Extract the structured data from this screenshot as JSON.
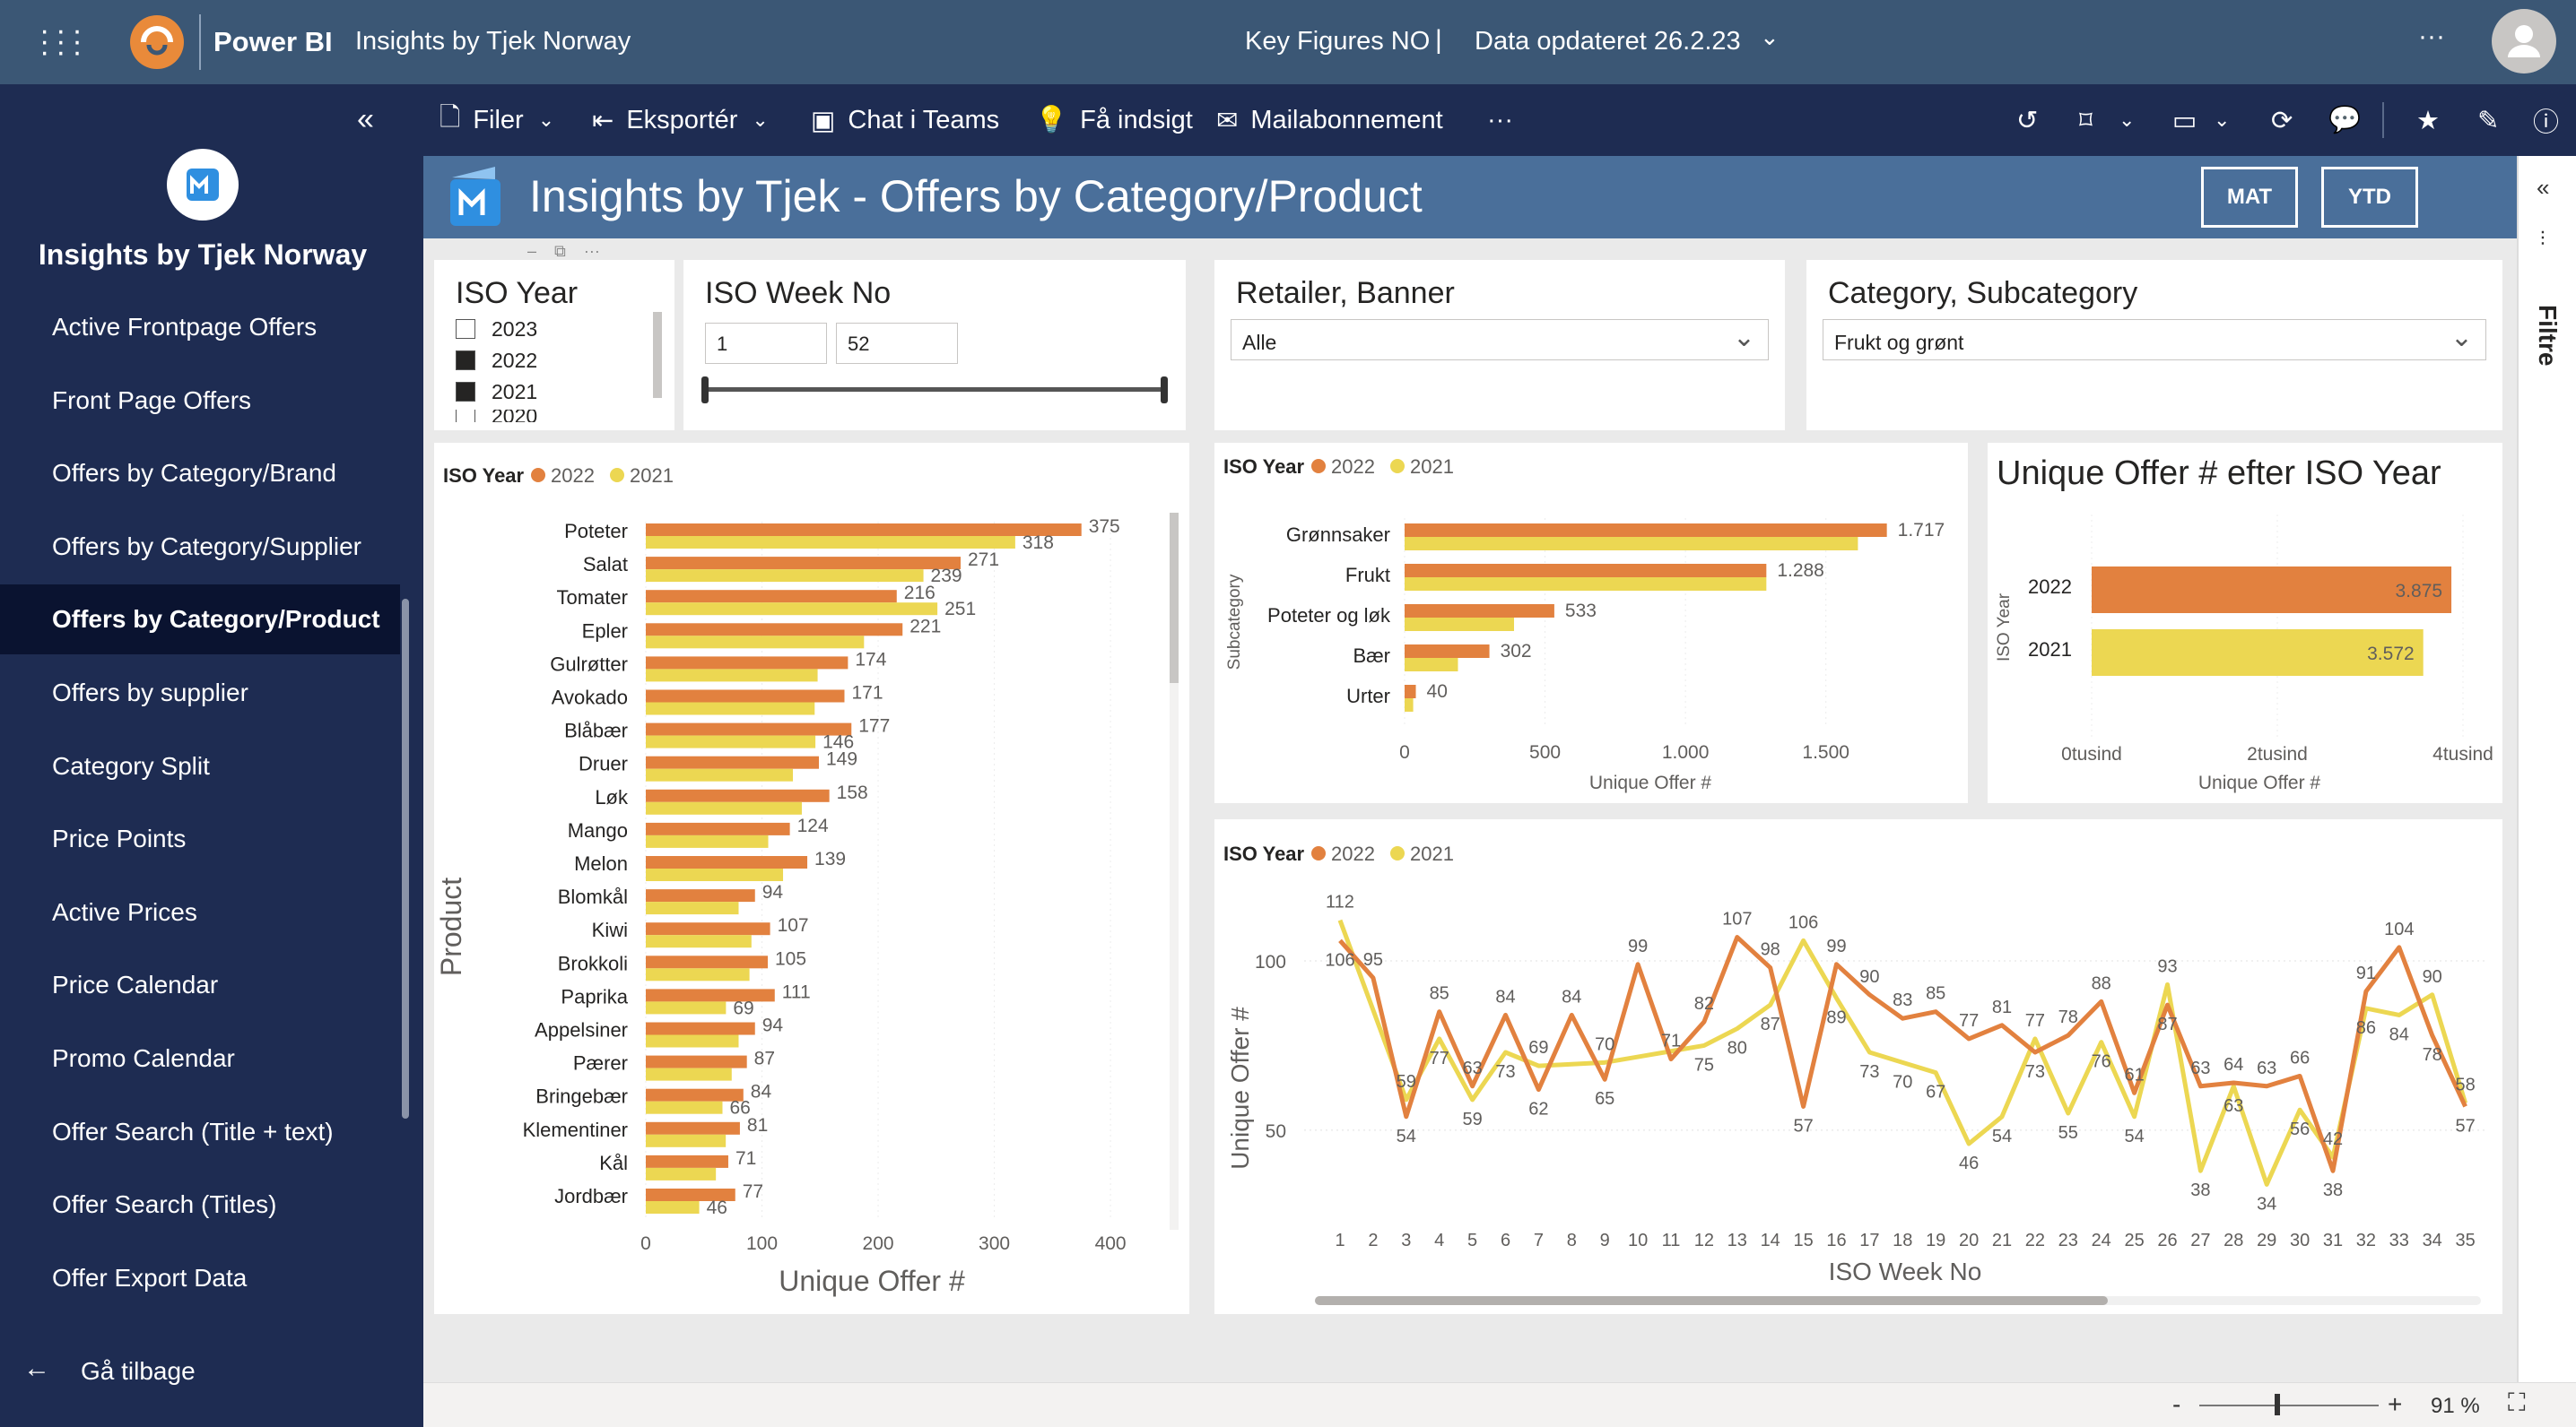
{
  "topbar": {
    "app_name": "Power BI",
    "workspace": "Insights by Tjek Norway",
    "report": "Key Figures NO",
    "separator": "|",
    "updated": "Data opdateret 26.2.23",
    "more": "···"
  },
  "toolbar": {
    "file": "Filer",
    "export": "Eksportér",
    "teams": "Chat i Teams",
    "insight": "Få indsigt",
    "subscribe": "Mailabonnement",
    "more": "···"
  },
  "sidebar": {
    "title": "Insights by Tjek Norway",
    "items": [
      {
        "label": "Active Frontpage Offers"
      },
      {
        "label": "Front Page Offers"
      },
      {
        "label": "Offers by Category/Brand"
      },
      {
        "label": "Offers by Category/Supplier"
      },
      {
        "label": "Offers by Category/Product"
      },
      {
        "label": "Offers by supplier"
      },
      {
        "label": "Category Split"
      },
      {
        "label": "Price Points"
      },
      {
        "label": "Active Prices"
      },
      {
        "label": "Price Calendar"
      },
      {
        "label": "Promo Calendar"
      },
      {
        "label": "Offer Search (Title + text)"
      },
      {
        "label": "Offer Search (Titles)"
      },
      {
        "label": "Offer Export Data"
      }
    ],
    "active_index": 4,
    "back": "Gå tilbage"
  },
  "page": {
    "title": "Insights by Tjek - Offers by Category/Product",
    "btn_mat": "MAT",
    "btn_ytd": "YTD"
  },
  "filters": {
    "iso_year": {
      "title": "ISO Year",
      "options": [
        {
          "label": "2023",
          "checked": false
        },
        {
          "label": "2022",
          "checked": true
        },
        {
          "label": "2021",
          "checked": true
        },
        {
          "label": "2020",
          "checked": false
        }
      ]
    },
    "week": {
      "title": "ISO Week No",
      "from": "1",
      "to": "52"
    },
    "retailer": {
      "title": "Retailer, Banner",
      "value": "Alle"
    },
    "category": {
      "title": "Category, Subcategory",
      "value": "Frukt og grønt"
    }
  },
  "filter_pane": {
    "label": "Filtre"
  },
  "status": {
    "zoom": "91 %",
    "minus": "-",
    "plus": "+"
  },
  "colors": {
    "y2022": "#e2813f",
    "y2021": "#ecd752",
    "sidebar": "#1e2c52",
    "topbar": "#3b5775",
    "banner": "#4a6f9a"
  },
  "chart_data": [
    {
      "type": "bar",
      "orientation": "horizontal",
      "legend_title": "ISO Year",
      "ylabel": "Product",
      "xlabel": "Unique Offer #",
      "xticks": [
        "0",
        "100",
        "200",
        "300",
        "400"
      ],
      "xlim": [
        0,
        420
      ],
      "categories": [
        "Poteter",
        "Salat",
        "Tomater",
        "Epler",
        "Gulrøtter",
        "Avokado",
        "Blåbær",
        "Druer",
        "Løk",
        "Mango",
        "Melon",
        "Blomkål",
        "Kiwi",
        "Brokkoli",
        "Paprika",
        "Appelsiner",
        "Pærer",
        "Bringebær",
        "Klementiner",
        "Kål",
        "Jordbær"
      ],
      "series": [
        {
          "name": "2022",
          "values": [
            375,
            271,
            216,
            221,
            174,
            171,
            177,
            149,
            158,
            124,
            139,
            94,
            107,
            105,
            111,
            94,
            87,
            84,
            81,
            71,
            77
          ]
        },
        {
          "name": "2021",
          "values": [
            318,
            239,
            251,
            null,
            null,
            null,
            146,
            null,
            null,
            null,
            null,
            null,
            null,
            null,
            69,
            null,
            null,
            66,
            null,
            null,
            46
          ]
        }
      ]
    },
    {
      "type": "bar",
      "orientation": "horizontal",
      "legend_title": "ISO Year",
      "ylabel": "Subcategory",
      "xlabel": "Unique Offer #",
      "xticks": [
        "0",
        "500",
        "1.000",
        "1.500"
      ],
      "xlim": [
        0,
        1750
      ],
      "categories": [
        "Grønnsaker",
        "Frukt",
        "Poteter og løk",
        "Bær",
        "Urter"
      ],
      "series": [
        {
          "name": "2022",
          "values": [
            1717,
            1288,
            533,
            302,
            40
          ]
        },
        {
          "name": "2021",
          "values": [
            null,
            null,
            null,
            null,
            null
          ]
        }
      ],
      "value_labels": [
        "1.717",
        "1.288",
        "533",
        "302",
        "40"
      ]
    },
    {
      "type": "bar",
      "orientation": "horizontal",
      "title": "Unique Offer # efter ISO Year",
      "ylabel": "ISO Year",
      "xlabel": "Unique Offer #",
      "xticks": [
        "0tusind",
        "2tusind",
        "4tusind"
      ],
      "xlim": [
        0,
        4000
      ],
      "categories": [
        "2022",
        "2021"
      ],
      "values": [
        3875,
        3572
      ],
      "value_labels": [
        "3.875",
        "3.572"
      ]
    },
    {
      "type": "line",
      "legend_title": "ISO Year",
      "xlabel": "ISO Week No",
      "ylabel": "Unique Offer #",
      "yticks": [
        "50",
        "100"
      ],
      "ylim": [
        28,
        118
      ],
      "x": [
        1,
        2,
        3,
        4,
        5,
        6,
        7,
        8,
        9,
        10,
        11,
        12,
        13,
        14,
        15,
        16,
        17,
        18,
        19,
        20,
        21,
        22,
        23,
        24,
        25,
        26,
        27,
        28,
        29,
        30,
        31,
        32,
        33,
        34,
        35
      ],
      "series": [
        {
          "name": "2022",
          "values": [
            106,
            95,
            54,
            85,
            63,
            84,
            62,
            84,
            65,
            99,
            71,
            82,
            107,
            98,
            57,
            99,
            90,
            83,
            85,
            77,
            81,
            73,
            78,
            88,
            61,
            87,
            63,
            64,
            63,
            66,
            38,
            91,
            104,
            78,
            57
          ]
        },
        {
          "name": "2021",
          "values": [
            112,
            null,
            59,
            77,
            59,
            73,
            69,
            null,
            70,
            null,
            null,
            75,
            80,
            87,
            106,
            89,
            73,
            70,
            67,
            46,
            54,
            77,
            55,
            76,
            54,
            93,
            38,
            63,
            34,
            56,
            42,
            86,
            84,
            90,
            58
          ]
        }
      ]
    }
  ]
}
